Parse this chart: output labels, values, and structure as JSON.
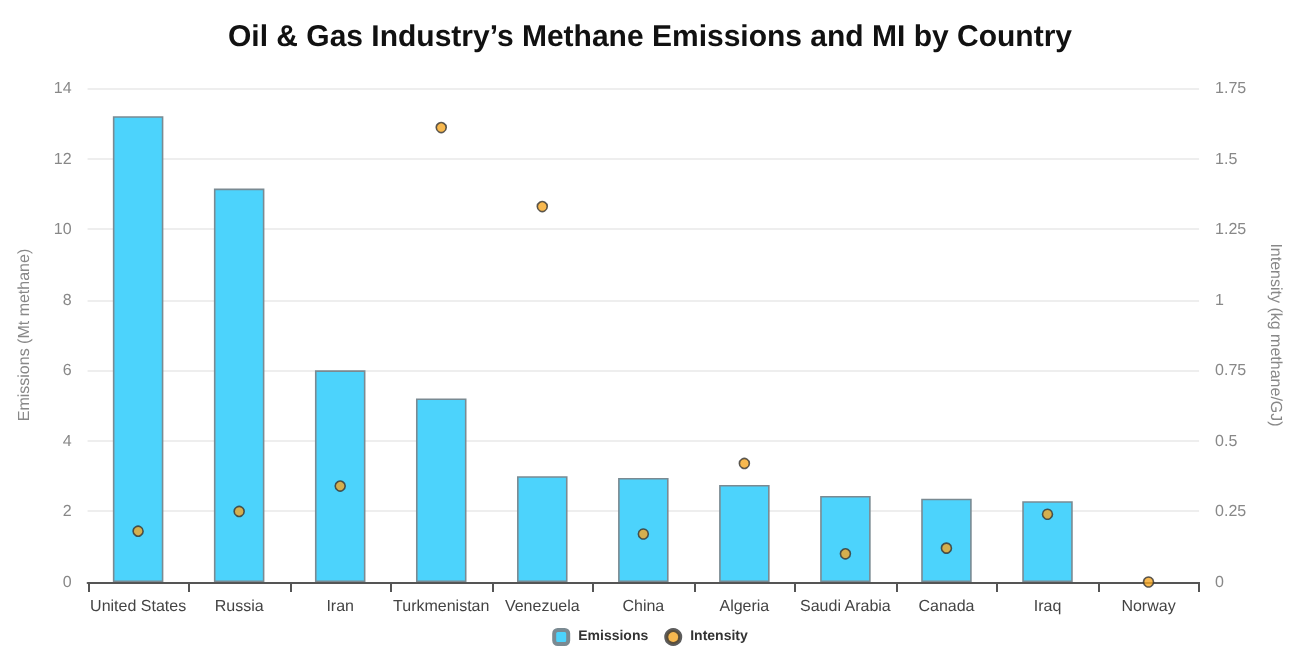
{
  "chart_data": {
    "type": "bar",
    "title": "Oil & Gas Industry’s Methane Emissions and MI by Country",
    "ylabel": "Emissions (Mt methane)",
    "y2label": "Intensity (kg methane/GJ)",
    "categories": [
      "United States",
      "Russia",
      "Iran",
      "Turkmenistan",
      "Venezuela",
      "China",
      "Algeria",
      "Saudi Arabia",
      "Canada",
      "Iraq",
      "Norway"
    ],
    "series": [
      {
        "name": "Emissions",
        "color": "#4cd3fc",
        "values": [
          13.2,
          11.15,
          6.0,
          5.2,
          3.0,
          2.95,
          2.75,
          2.44,
          2.36,
          2.29,
          0
        ]
      },
      {
        "name": "Intensity",
        "type": "scatter",
        "axis": "y2",
        "color": "#f5a623",
        "values": [
          0.18,
          0.25,
          0.34,
          1.61,
          1.33,
          0.17,
          0.42,
          0.1,
          0.12,
          0.24,
          0
        ]
      }
    ],
    "ylim": [
      0,
      14
    ],
    "yticks": [
      0,
      2,
      4,
      6,
      8,
      10,
      12,
      14
    ],
    "y2lim": [
      0,
      1.75
    ],
    "y2ticks": [
      0,
      0.25,
      0.5,
      0.75,
      1,
      1.25,
      1.5,
      1.75
    ],
    "grid": "y",
    "legend": "bottom",
    "marker": "circle"
  }
}
